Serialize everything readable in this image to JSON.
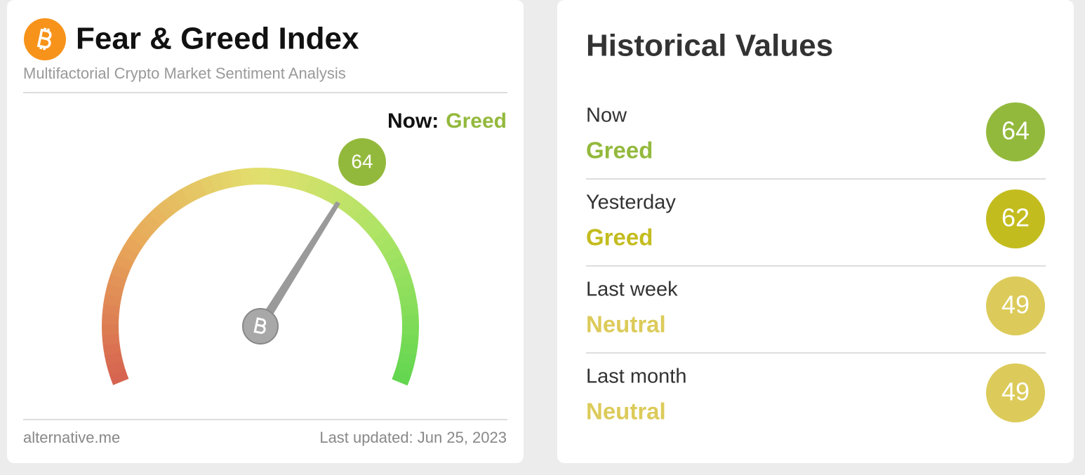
{
  "gauge": {
    "title": "Fear & Greed Index",
    "subtitle": "Multifactorial Crypto Market Sentiment Analysis",
    "now_label": "Now:",
    "classification": "Greed",
    "value": 64,
    "color": "#93b93c",
    "source": "alternative.me",
    "updated": "Last updated: Jun 25, 2023"
  },
  "history": {
    "title": "Historical Values",
    "items": [
      {
        "label": "Now",
        "classification": "Greed",
        "value": 64,
        "color": "#93b93c"
      },
      {
        "label": "Yesterday",
        "classification": "Greed",
        "value": 62,
        "color": "#c3bc1e"
      },
      {
        "label": "Last week",
        "classification": "Neutral",
        "value": 49,
        "color": "#dccb5a"
      },
      {
        "label": "Last month",
        "classification": "Neutral",
        "value": 49,
        "color": "#dccb5a"
      }
    ]
  }
}
